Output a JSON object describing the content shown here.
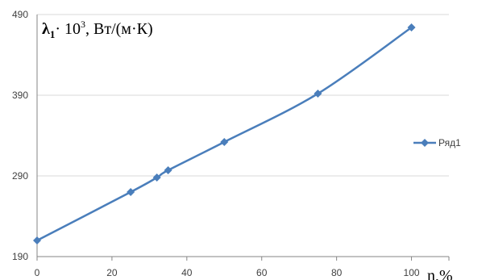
{
  "chart_data": {
    "type": "line",
    "x": [
      0,
      25,
      32,
      35,
      50,
      75,
      100
    ],
    "series": [
      {
        "name": "Ряд1",
        "values": [
          210,
          270,
          288,
          297,
          332,
          392,
          474
        ],
        "color": "#4a7ebb"
      }
    ],
    "xlim": [
      0,
      110
    ],
    "ylim": [
      190,
      490
    ],
    "x_ticks": [
      0,
      20,
      40,
      60,
      80,
      100
    ],
    "y_ticks": [
      190,
      290,
      390,
      490
    ],
    "ylabel": {
      "symbol": "λ",
      "subscript": "1",
      "dot": "·",
      "base": " 10",
      "exponent": "3",
      "units": ", Вт/(м·К)"
    },
    "xlabel": "n,%",
    "grid": "horizontal",
    "legend": "right"
  }
}
